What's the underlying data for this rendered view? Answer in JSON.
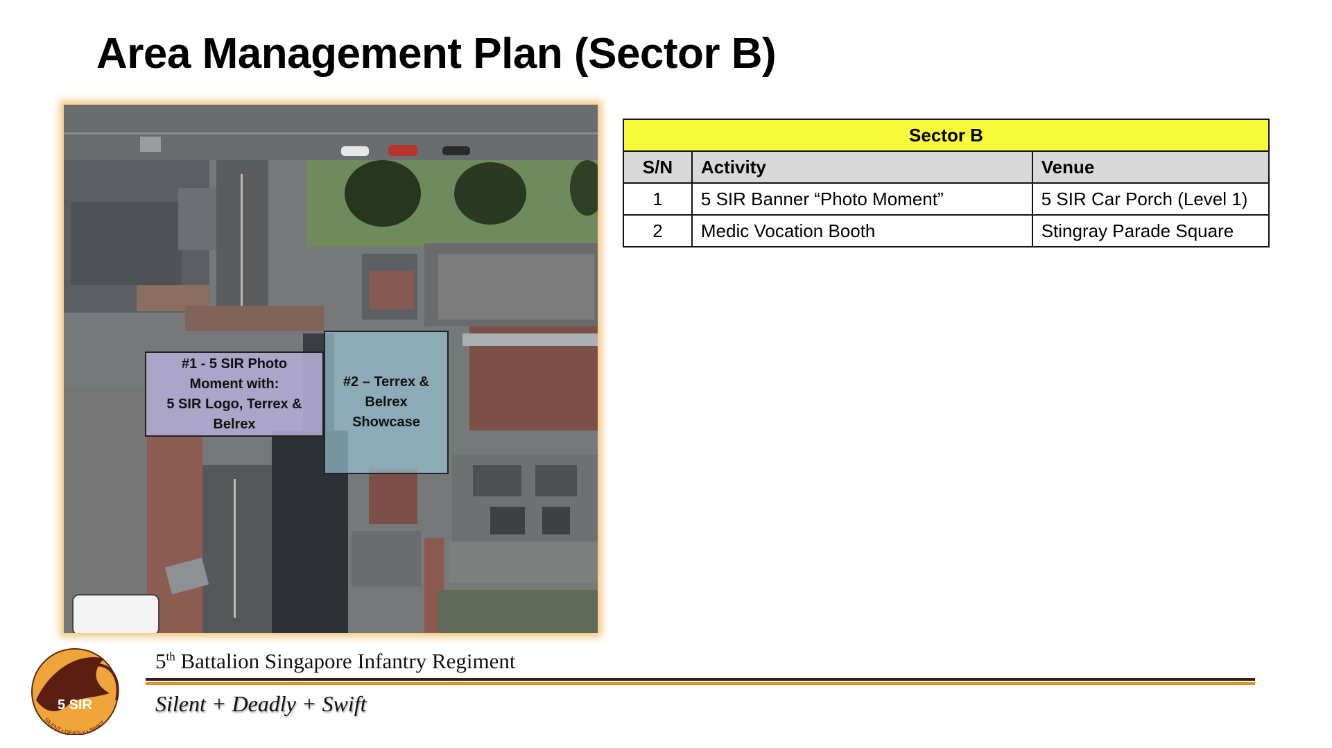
{
  "slide": {
    "title": "Area Management Plan (Sector B)"
  },
  "map": {
    "callouts": [
      {
        "id": 1,
        "lines": [
          "#1 - 5 SIR Photo",
          "Moment with:",
          "5 SIR Logo, Terrex &",
          "Belrex"
        ]
      },
      {
        "id": 2,
        "lines": [
          "#2 – Terrex &",
          "Belrex",
          "Showcase"
        ]
      }
    ]
  },
  "table": {
    "title": "Sector B",
    "headers": {
      "sn": "S/N",
      "activity": "Activity",
      "venue": "Venue"
    },
    "rows": [
      {
        "sn": "1",
        "activity": "5 SIR Banner “Photo Moment”",
        "venue": "5 SIR Car Porch (Level 1)"
      },
      {
        "sn": "2",
        "activity": "Medic Vocation Booth",
        "venue": "Stingray Parade Square"
      }
    ]
  },
  "footer": {
    "unit_prefix": "5",
    "unit_sup": "th",
    "unit_rest": " Battalion Singapore Infantry Regiment",
    "motto": "Silent + Deadly + Swift",
    "logo_text": "5 SIR",
    "logo_ring_text": "SILENT • DEADLY • SWIFT"
  },
  "colors": {
    "table_title_bg": "#f7fb3a",
    "header_bg": "#d9d9d9",
    "rule_dark": "#3a1e10",
    "rule_orange": "#e0902a"
  }
}
